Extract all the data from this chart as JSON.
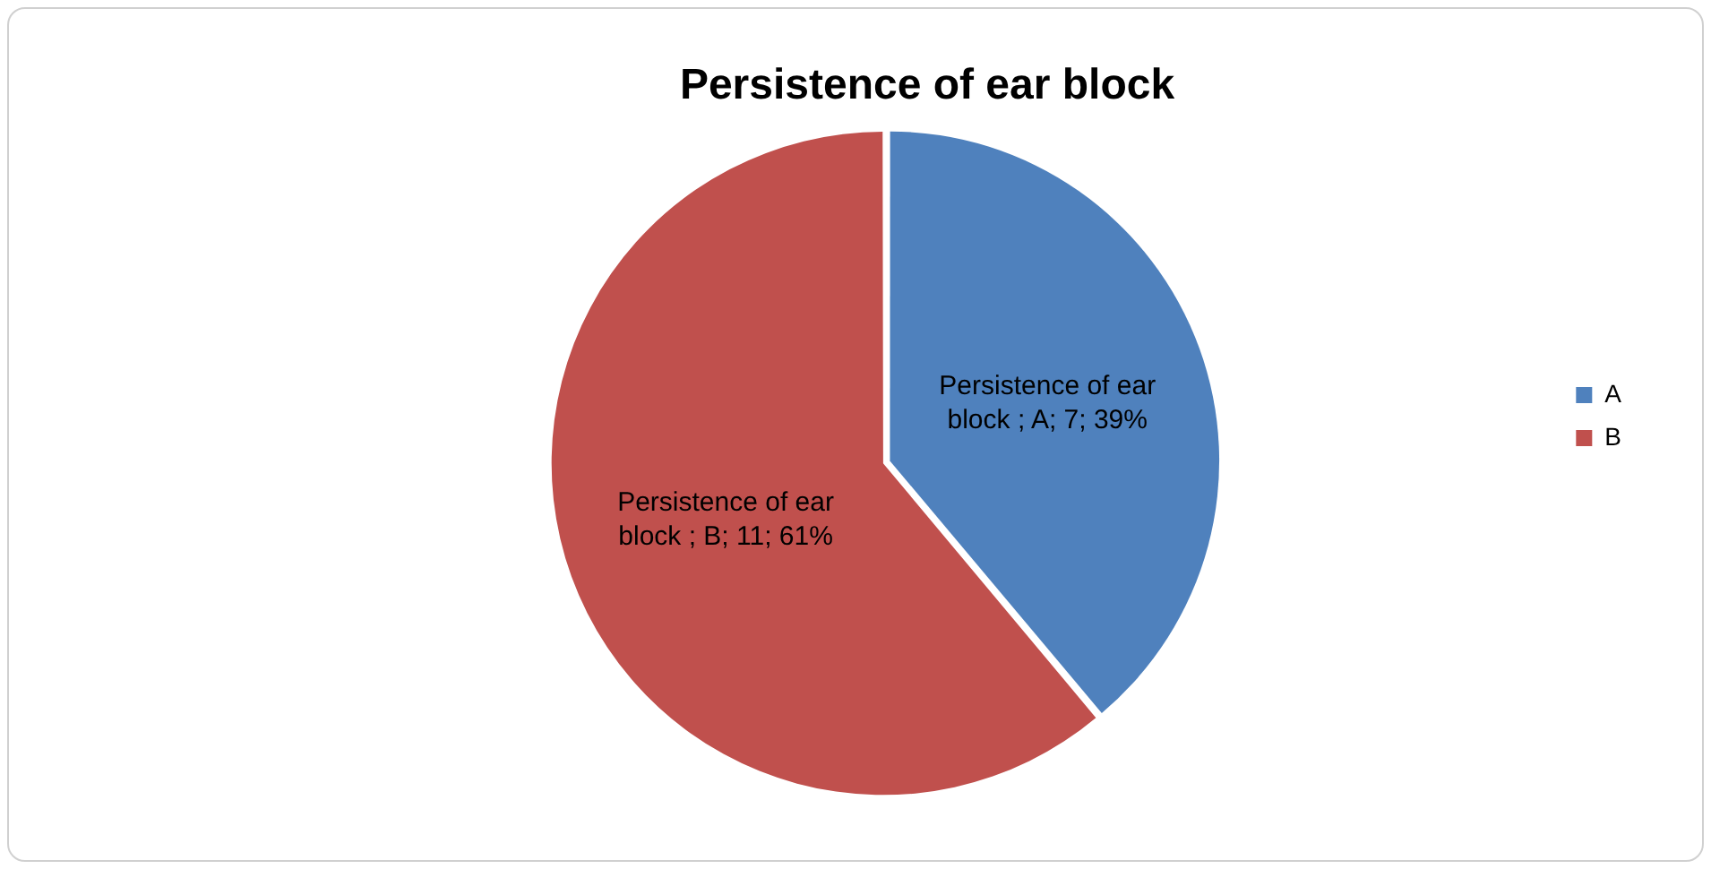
{
  "chart_data": {
    "type": "pie",
    "title": "Persistence of ear block",
    "categories": [
      "A",
      "B"
    ],
    "values": [
      7,
      11
    ],
    "colors": [
      "#4f81bd",
      "#c0504d"
    ],
    "value_labels": [
      "Persistence of ear block ; A; 7; 39%",
      "Persistence of ear block ; B; 11; 61%"
    ],
    "legend": "right"
  }
}
